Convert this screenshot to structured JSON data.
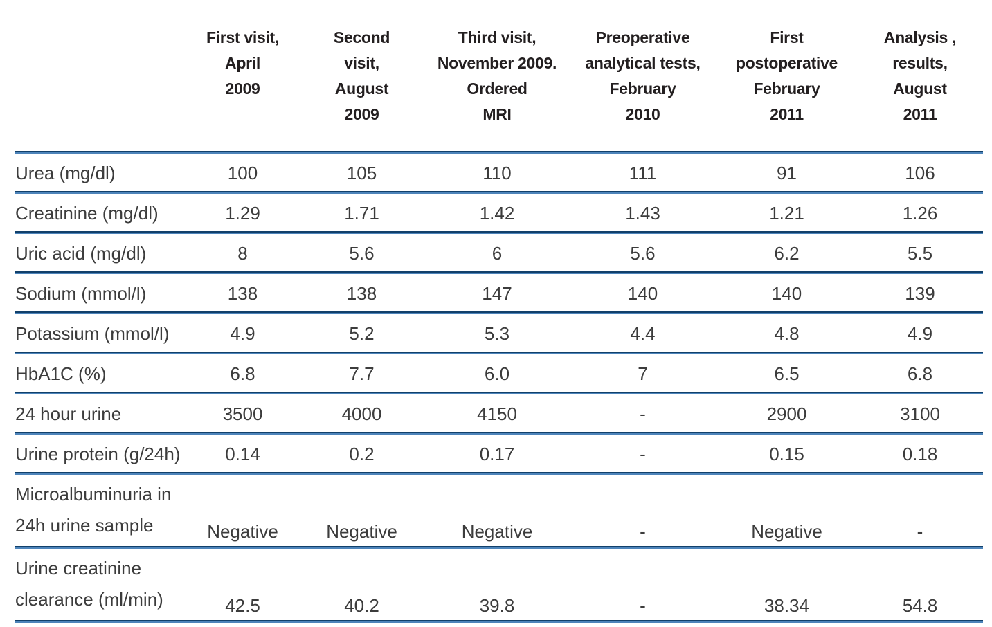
{
  "table": {
    "corner_label": "",
    "columns": [
      "First visit,\nApril\n2009",
      "Second\nvisit,\nAugust\n2009",
      "Third visit,\nNovember 2009.\nOrdered\nMRI",
      "Preoperative\nanalytical tests,\nFebruary\n2010",
      "First\npostoperative\nFebruary\n2011",
      "Analysis ,\nresults,\nAugust\n2011"
    ],
    "rows": [
      {
        "label": "Urea (mg/dl)",
        "values": [
          "100",
          "105",
          "110",
          "111",
          "91",
          "106"
        ]
      },
      {
        "label": "Creatinine (mg/dl)",
        "values": [
          "1.29",
          "1.71",
          "1.42",
          "1.43",
          "1.21",
          "1.26"
        ]
      },
      {
        "label": "Uric acid (mg/dl)",
        "values": [
          "8",
          "5.6",
          "6",
          "5.6",
          "6.2",
          "5.5"
        ]
      },
      {
        "label": "Sodium (mmol/l)",
        "values": [
          "138",
          "138",
          "147",
          "140",
          "140",
          "139"
        ]
      },
      {
        "label": "Potassium (mmol/l)",
        "values": [
          "4.9",
          "5.2",
          "5.3",
          "4.4",
          "4.8",
          "4.9"
        ]
      },
      {
        "label": "HbA1C (%)",
        "values": [
          "6.8",
          "7.7",
          "6.0",
          "7",
          "6.5",
          "6.8"
        ]
      },
      {
        "label": "24 hour urine",
        "values": [
          "3500",
          "4000",
          "4150",
          "-",
          "2900",
          "3100"
        ]
      },
      {
        "label": "Urine protein (g/24h)",
        "values": [
          "0.14",
          "0.2",
          "0.17",
          "-",
          "0.15",
          "0.18"
        ]
      },
      {
        "label": "Microalbuminuria in\n24h urine sample",
        "values": [
          "Negative",
          "Negative",
          "Negative",
          "-",
          "Negative",
          "-"
        ]
      },
      {
        "label": "Urine creatinine\nclearance (ml/min)",
        "values": [
          "42.5",
          "40.2",
          "39.8",
          "-",
          "38.34",
          "54.8"
        ]
      }
    ]
  },
  "colors": {
    "rule_dark": "#11406a",
    "rule_light": "#4d84ba",
    "header_text": "#231f20",
    "body_text": "#3c3c3c",
    "background": "#ffffff"
  }
}
